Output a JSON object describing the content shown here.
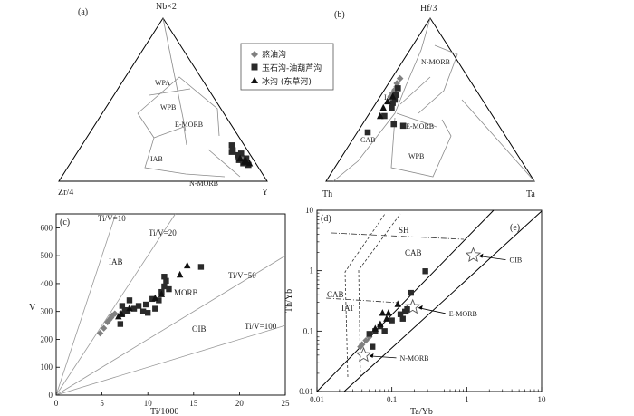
{
  "legend": {
    "items": [
      {
        "marker": "diamond",
        "color": "#808080",
        "label": "熬油沟"
      },
      {
        "marker": "square",
        "color": "#2a2a2a",
        "label": "玉石沟-油葫芦沟"
      },
      {
        "marker": "triangle",
        "color": "#111111",
        "label": "冰沟 (东草河)"
      }
    ]
  },
  "chart_data": [
    {
      "id": "a",
      "type": "scatter",
      "subtype": "ternary",
      "panel_label": "(a)",
      "apices": {
        "top": "Nb×2",
        "left": "Zr/4",
        "right": "Y"
      },
      "field_labels": [
        "WPA",
        "WPB",
        "E-MORB",
        "IAB",
        "N-MORB"
      ],
      "series": [
        {
          "name": "熬油沟",
          "points": [
            [
              0.15,
              0.05,
              0.8
            ],
            [
              0.14,
              0.04,
              0.82
            ],
            [
              0.16,
              0.05,
              0.79
            ],
            [
              0.15,
              0.06,
              0.79
            ],
            [
              0.13,
              0.05,
              0.82
            ],
            [
              0.14,
              0.07,
              0.79
            ]
          ]
        },
        {
          "name": "玉石沟-油葫芦沟",
          "points": [
            [
              0.22,
              0.06,
              0.72
            ],
            [
              0.16,
              0.06,
              0.78
            ],
            [
              0.18,
              0.08,
              0.74
            ],
            [
              0.12,
              0.05,
              0.83
            ],
            [
              0.1,
              0.04,
              0.86
            ],
            [
              0.14,
              0.03,
              0.83
            ],
            [
              0.19,
              0.07,
              0.74
            ],
            [
              0.11,
              0.06,
              0.83
            ],
            [
              0.17,
              0.04,
              0.79
            ],
            [
              0.13,
              0.07,
              0.8
            ]
          ]
        },
        {
          "name": "冰沟 (东草河)",
          "points": [
            [
              0.13,
              0.04,
              0.83
            ],
            [
              0.12,
              0.05,
              0.83
            ],
            [
              0.14,
              0.06,
              0.8
            ],
            [
              0.11,
              0.03,
              0.86
            ],
            [
              0.12,
              0.04,
              0.84
            ]
          ]
        }
      ]
    },
    {
      "id": "b",
      "type": "scatter",
      "subtype": "ternary",
      "panel_label": "(b)",
      "apices": {
        "top": "Hf/3",
        "left": "Th",
        "right": "Ta"
      },
      "field_labels": [
        "N-MORB",
        "IAB",
        "E-MORB",
        "CAB",
        "WPB"
      ],
      "series": [
        {
          "name": "熬油沟",
          "points": [
            [
              0.63,
              0.33,
              0.04
            ],
            [
              0.6,
              0.36,
              0.04
            ],
            [
              0.56,
              0.39,
              0.05
            ],
            [
              0.58,
              0.37,
              0.05
            ],
            [
              0.54,
              0.41,
              0.05
            ],
            [
              0.52,
              0.43,
              0.05
            ]
          ]
        },
        {
          "name": "玉石沟-油葫芦沟",
          "points": [
            [
              0.57,
              0.37,
              0.06
            ],
            [
              0.5,
              0.42,
              0.08
            ],
            [
              0.45,
              0.46,
              0.09
            ],
            [
              0.53,
              0.4,
              0.07
            ],
            [
              0.48,
              0.44,
              0.08
            ],
            [
              0.3,
              0.65,
              0.05
            ],
            [
              0.35,
              0.5,
              0.15
            ],
            [
              0.34,
              0.46,
              0.2
            ],
            [
              0.4,
              0.52,
              0.08
            ]
          ]
        },
        {
          "name": "冰沟 (东草河)",
          "points": [
            [
              0.49,
              0.46,
              0.05
            ],
            [
              0.45,
              0.5,
              0.05
            ],
            [
              0.4,
              0.54,
              0.06
            ],
            [
              0.52,
              0.42,
              0.06
            ]
          ]
        }
      ]
    },
    {
      "id": "c",
      "type": "scatter",
      "panel_label": "(c)",
      "xlabel": "Ti/1000",
      "ylabel": "V",
      "xlim": [
        0,
        25
      ],
      "ylim": [
        0,
        650
      ],
      "xticks": [
        0,
        5,
        10,
        15,
        20,
        25
      ],
      "yticks": [
        0,
        100,
        200,
        300,
        400,
        500,
        600
      ],
      "ratio_lines": [
        {
          "label": "Ti/V=10",
          "ratio": 10
        },
        {
          "label": "Ti/V=20",
          "ratio": 20
        },
        {
          "label": "Ti/V=50",
          "ratio": 50
        },
        {
          "label": "Ti/V=100",
          "ratio": 100
        }
      ],
      "field_labels": [
        "IAB",
        "MORB",
        "OIB"
      ],
      "series": [
        {
          "name": "熬油沟",
          "points": [
            [
              4.8,
              222
            ],
            [
              5.2,
              240
            ],
            [
              5.6,
              262
            ],
            [
              6.0,
              278
            ],
            [
              6.4,
              292
            ],
            [
              6.1,
              285
            ],
            [
              5.8,
              270
            ]
          ]
        },
        {
          "name": "玉石沟-油葫芦沟",
          "points": [
            [
              7.0,
              255
            ],
            [
              7.2,
              290
            ],
            [
              7.8,
              300
            ],
            [
              8.5,
              310
            ],
            [
              9.0,
              320
            ],
            [
              9.8,
              325
            ],
            [
              10.5,
              345
            ],
            [
              10.8,
              310
            ],
            [
              11.2,
              340
            ],
            [
              11.8,
              390
            ],
            [
              11.8,
              425
            ],
            [
              12.0,
              410
            ],
            [
              12.3,
              380
            ],
            [
              15.8,
              460
            ],
            [
              8.0,
              340
            ],
            [
              7.2,
              320
            ],
            [
              7.5,
              305
            ],
            [
              9.5,
              300
            ],
            [
              10.0,
              295
            ],
            [
              11.5,
              370
            ]
          ]
        },
        {
          "name": "冰沟 (东草河)",
          "points": [
            [
              6.8,
              282
            ],
            [
              7.1,
              292
            ],
            [
              8.0,
              312
            ],
            [
              10.8,
              348
            ],
            [
              11.5,
              362
            ],
            [
              13.5,
              432
            ],
            [
              14.3,
              465
            ]
          ]
        }
      ]
    },
    {
      "id": "de",
      "type": "scatter",
      "scale": "log",
      "panel_labels": [
        "(d)",
        "(e)"
      ],
      "xlabel": "Ta/Yb",
      "ylabel": "Th/Yb",
      "xlim": [
        0.01,
        10
      ],
      "ylim": [
        0.01,
        10
      ],
      "xtick_labels": [
        "0.01",
        "0.1",
        "1",
        "10"
      ],
      "ytick_labels": [
        "0.01",
        "0.1",
        "1",
        "10"
      ],
      "field_labels": [
        "SH",
        "CAB",
        "CAB",
        "IAT"
      ],
      "reference_points": [
        {
          "label": "OIB",
          "x": 1.22,
          "y": 1.8
        },
        {
          "label": "E-MORB",
          "x": 0.19,
          "y": 0.25
        },
        {
          "label": "N-MORB",
          "x": 0.042,
          "y": 0.04
        }
      ],
      "series": [
        {
          "name": "熬油沟",
          "points": [
            [
              0.04,
              0.06
            ],
            [
              0.045,
              0.07
            ],
            [
              0.05,
              0.08
            ],
            [
              0.038,
              0.055
            ]
          ]
        },
        {
          "name": "玉石沟-油葫芦沟",
          "points": [
            [
              0.05,
              0.09
            ],
            [
              0.06,
              0.1
            ],
            [
              0.07,
              0.12
            ],
            [
              0.08,
              0.1
            ],
            [
              0.1,
              0.15
            ],
            [
              0.13,
              0.19
            ],
            [
              0.14,
              0.16
            ],
            [
              0.15,
              0.21
            ],
            [
              0.16,
              0.23
            ],
            [
              0.18,
              0.43
            ],
            [
              0.28,
              0.98
            ],
            [
              0.055,
              0.055
            ]
          ]
        },
        {
          "name": "冰沟 (东草河)",
          "points": [
            [
              0.06,
              0.11
            ],
            [
              0.07,
              0.13
            ],
            [
              0.075,
              0.2
            ],
            [
              0.09,
              0.2
            ],
            [
              0.12,
              0.28
            ],
            [
              0.085,
              0.16
            ]
          ]
        }
      ]
    }
  ]
}
